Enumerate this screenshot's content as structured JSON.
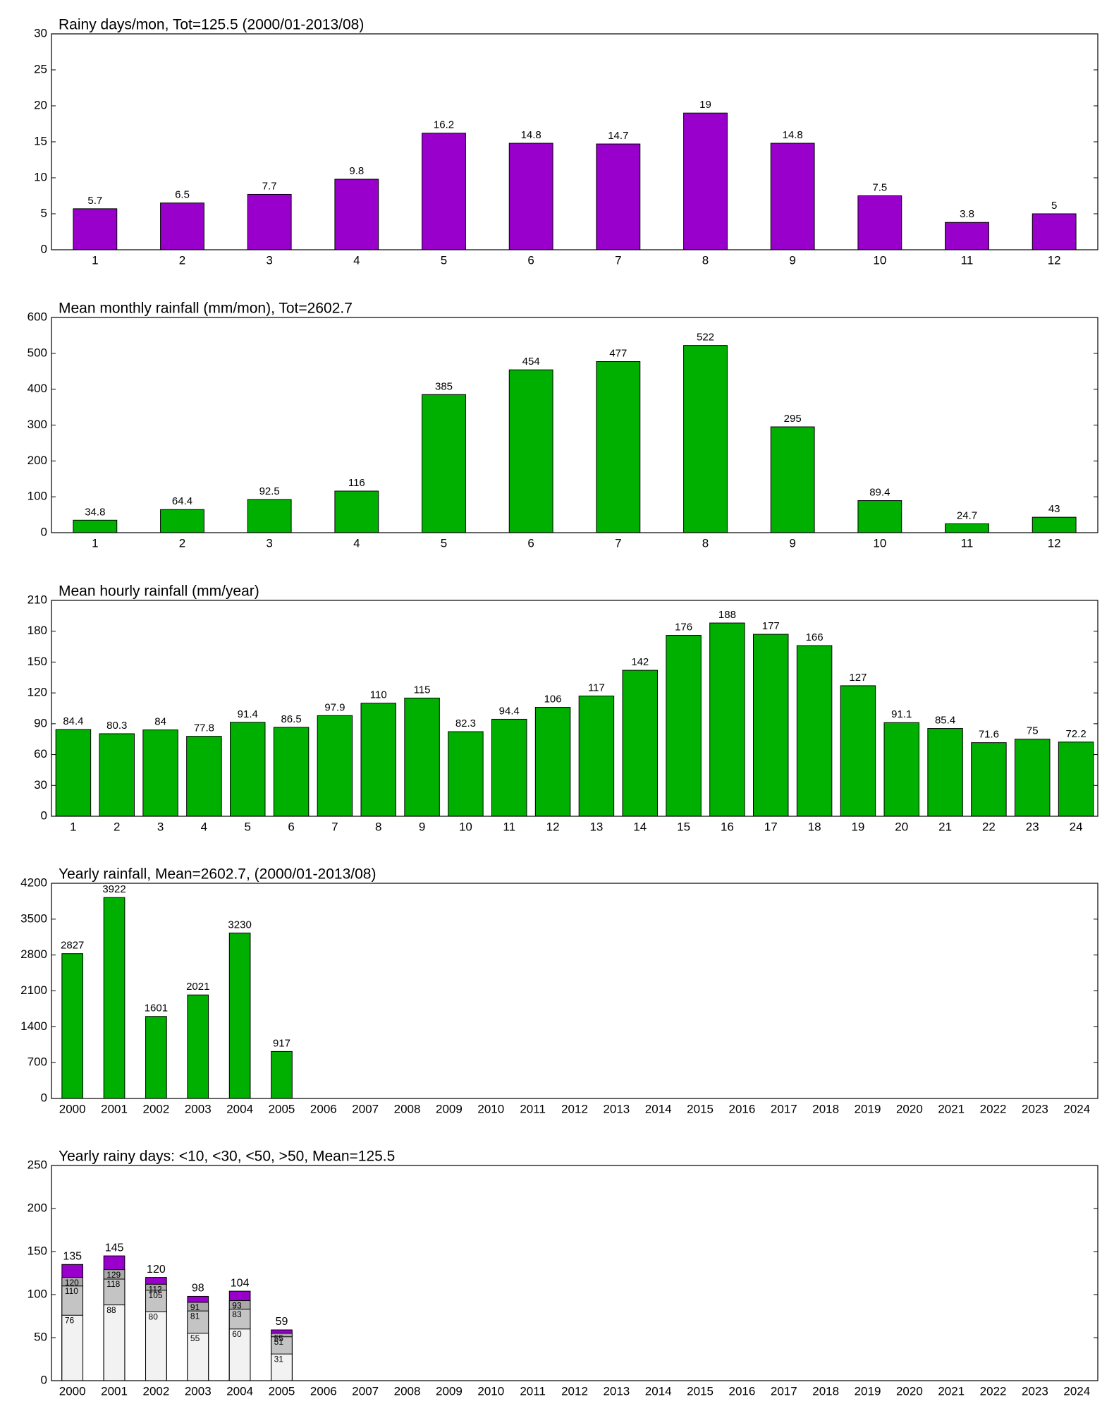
{
  "chart_data": [
    {
      "type": "bar",
      "title": "Rainy days/mon, Tot=125.5 (2000/01-2013/08)",
      "categories": [
        1,
        2,
        3,
        4,
        5,
        6,
        7,
        8,
        9,
        10,
        11,
        12
      ],
      "values": [
        5.7,
        6.5,
        7.7,
        9.8,
        16.2,
        14.8,
        14.7,
        19,
        14.8,
        7.5,
        3.8,
        5
      ],
      "color": "#9900cc",
      "ylim": [
        0,
        30
      ],
      "yticks": [
        0,
        5,
        10,
        15,
        20,
        25,
        30
      ]
    },
    {
      "type": "bar",
      "title": "Mean monthly rainfall (mm/mon), Tot=2602.7",
      "categories": [
        1,
        2,
        3,
        4,
        5,
        6,
        7,
        8,
        9,
        10,
        11,
        12
      ],
      "values": [
        34.8,
        64.4,
        92.5,
        116,
        385,
        454,
        477,
        522,
        295,
        89.4,
        24.7,
        43
      ],
      "color": "#00b000",
      "ylim": [
        0,
        600
      ],
      "yticks": [
        0,
        100,
        200,
        300,
        400,
        500,
        600
      ]
    },
    {
      "type": "bar",
      "title": "Mean hourly rainfall (mm/year)",
      "categories": [
        1,
        2,
        3,
        4,
        5,
        6,
        7,
        8,
        9,
        10,
        11,
        12,
        13,
        14,
        15,
        16,
        17,
        18,
        19,
        20,
        21,
        22,
        23,
        24
      ],
      "values": [
        84.4,
        80.3,
        84,
        77.8,
        91.4,
        86.5,
        97.9,
        110,
        115,
        82.3,
        94.4,
        106,
        117,
        142,
        176,
        188,
        177,
        166,
        127,
        91.1,
        85.4,
        71.6,
        75,
        72.2
      ],
      "color": "#00b000",
      "ylim": [
        0,
        210
      ],
      "yticks": [
        0,
        30,
        60,
        90,
        120,
        150,
        180,
        210
      ]
    },
    {
      "type": "bar",
      "title": "Yearly rainfall, Mean=2602.7, (2000/01-2013/08)",
      "categories": [
        2000,
        2001,
        2002,
        2003,
        2004,
        2005,
        2006,
        2007,
        2008,
        2009,
        2010,
        2011,
        2012,
        2013,
        2014,
        2015,
        2016,
        2017,
        2018,
        2019,
        2020,
        2021,
        2022,
        2023,
        2024
      ],
      "values": [
        2827,
        3922,
        1601,
        2021,
        3230,
        917,
        null,
        null,
        null,
        null,
        null,
        null,
        null,
        null,
        null,
        null,
        null,
        null,
        null,
        null,
        null,
        null,
        null,
        null,
        null
      ],
      "color": "#00b000",
      "ylim": [
        0,
        4200
      ],
      "yticks": [
        0,
        700,
        1400,
        2100,
        2800,
        3500,
        4200
      ]
    },
    {
      "type": "overlapped_bar",
      "title": "Yearly rainy days: <10, <30, <50, >50, Mean=125.5",
      "categories": [
        2000,
        2001,
        2002,
        2003,
        2004,
        2005,
        2006,
        2007,
        2008,
        2009,
        2010,
        2011,
        2012,
        2013,
        2014,
        2015,
        2016,
        2017,
        2018,
        2019,
        2020,
        2021,
        2022,
        2023,
        2024
      ],
      "series": [
        {
          "color": "#f2f2f2",
          "values": [
            76,
            88,
            80,
            55,
            60,
            31,
            null,
            null,
            null,
            null,
            null,
            null,
            null,
            null,
            null,
            null,
            null,
            null,
            null,
            null,
            null,
            null,
            null,
            null,
            null
          ]
        },
        {
          "color": "#c4c4c4",
          "values": [
            110,
            118,
            105,
            81,
            83,
            51,
            null,
            null,
            null,
            null,
            null,
            null,
            null,
            null,
            null,
            null,
            null,
            null,
            null,
            null,
            null,
            null,
            null,
            null,
            null
          ]
        },
        {
          "color": "#a9a9a9",
          "values": [
            120,
            129,
            112,
            91,
            93,
            55,
            null,
            null,
            null,
            null,
            null,
            null,
            null,
            null,
            null,
            null,
            null,
            null,
            null,
            null,
            null,
            null,
            null,
            null,
            null
          ]
        },
        {
          "color": "#9900cc",
          "values": [
            135,
            145,
            120,
            98,
            104,
            59,
            null,
            null,
            null,
            null,
            null,
            null,
            null,
            null,
            null,
            null,
            null,
            null,
            null,
            null,
            null,
            null,
            null,
            null,
            null
          ]
        }
      ],
      "ylim": [
        0,
        250
      ],
      "yticks": [
        0,
        50,
        100,
        150,
        200,
        250
      ]
    }
  ]
}
